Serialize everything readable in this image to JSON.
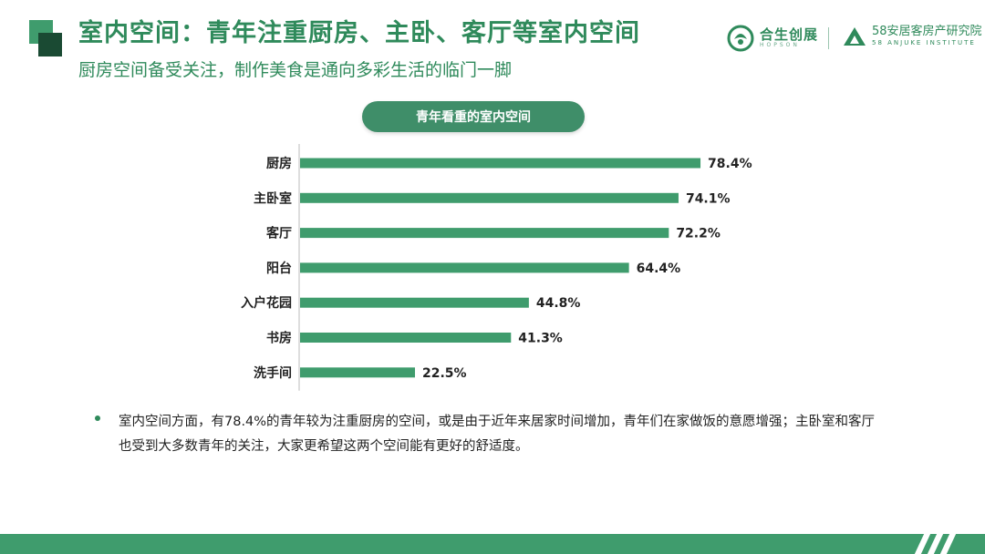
{
  "header": {
    "title": "室内空间：青年注重厨房、主卧、客厅等室内空间",
    "subtitle": "厨房空间备受关注，制作美食是通向多彩生活的临门一脚"
  },
  "logos": {
    "left_cn": "合生创展",
    "left_en": "HOPSON",
    "right_cn": "58安居客房产研究院",
    "right_en": "58 ANJUKE INSTITUTE"
  },
  "chart_data": {
    "type": "bar",
    "orientation": "horizontal",
    "title": "青年看重的室内空间",
    "categories": [
      "厨房",
      "主卧室",
      "客厅",
      "阳台",
      "入户花园",
      "书房",
      "洗手间"
    ],
    "values": [
      78.4,
      74.1,
      72.2,
      64.4,
      44.8,
      41.3,
      22.5
    ],
    "value_labels": [
      "78.4%",
      "74.1%",
      "72.2%",
      "64.4%",
      "44.8%",
      "41.3%",
      "22.5%"
    ],
    "unit": "%",
    "xlabel": "",
    "ylabel": "",
    "xlim": [
      0,
      100
    ],
    "grid": false,
    "legend": "none",
    "bar_color": "#3f9c6d"
  },
  "note": {
    "text": "室内空间方面，有78.4%的青年较为注重厨房的空间，或是由于近年来居家时间增加，青年们在家做饭的意愿增强；主卧室和客厅也受到大多数青年的关注，大家更希望这两个空间能有更好的舒适度。"
  },
  "colors": {
    "accent": "#2f8a5b",
    "bar": "#3f9c6d",
    "dark": "#1a4a33"
  }
}
